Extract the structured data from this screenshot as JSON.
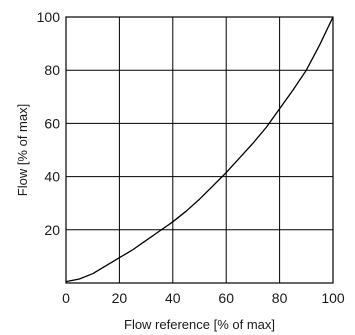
{
  "chart_data": {
    "type": "line",
    "xlabel": "Flow reference [% of max]",
    "ylabel": "Flow [% of max]",
    "xlim": [
      0,
      100
    ],
    "ylim": [
      0,
      100
    ],
    "x_ticks": [
      0,
      20,
      40,
      60,
      80,
      100
    ],
    "y_ticks": [
      20,
      40,
      60,
      80,
      100
    ],
    "grid": true,
    "colors": {
      "line": "#000000",
      "grid": "#000000",
      "frame": "#000000"
    },
    "series": [
      {
        "x": [
          0,
          5,
          10,
          15,
          20,
          25,
          30,
          35,
          40,
          45,
          50,
          55,
          60,
          65,
          70,
          75,
          80,
          85,
          90,
          95,
          100
        ],
        "y": [
          0.5,
          1.5,
          3.5,
          6.5,
          9.5,
          12.5,
          16,
          19.5,
          23,
          27,
          31.5,
          36.5,
          41.5,
          47,
          52.5,
          58.5,
          65.5,
          72.5,
          80,
          89.5,
          100
        ]
      }
    ]
  }
}
